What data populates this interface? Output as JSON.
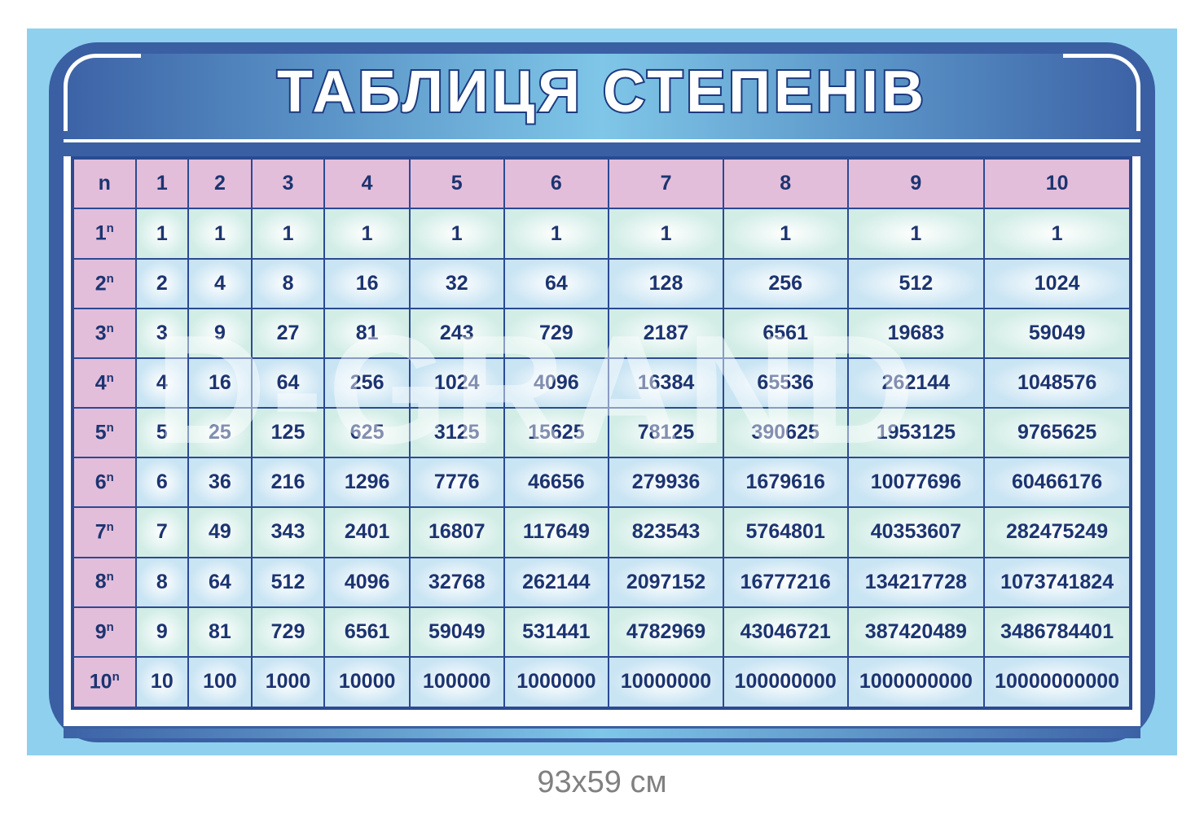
{
  "title": "ТАБЛИЦЯ СТЕПЕНІВ",
  "watermark": "D-GRAND",
  "caption": "93x59 см",
  "colors": {
    "frame": "#3a5fa3",
    "header_cell": "#e3bedb",
    "text": "#1c3470",
    "background": "#8fd0ee"
  },
  "table": {
    "header": [
      "n",
      "1",
      "2",
      "3",
      "4",
      "5",
      "6",
      "7",
      "8",
      "9",
      "10"
    ],
    "rows": [
      {
        "base": "1",
        "sup": "n",
        "values": [
          "1",
          "1",
          "1",
          "1",
          "1",
          "1",
          "1",
          "1",
          "1",
          "1"
        ]
      },
      {
        "base": "2",
        "sup": "n",
        "values": [
          "2",
          "4",
          "8",
          "16",
          "32",
          "64",
          "128",
          "256",
          "512",
          "1024"
        ]
      },
      {
        "base": "3",
        "sup": "n",
        "values": [
          "3",
          "9",
          "27",
          "81",
          "243",
          "729",
          "2187",
          "6561",
          "19683",
          "59049"
        ]
      },
      {
        "base": "4",
        "sup": "n",
        "values": [
          "4",
          "16",
          "64",
          "256",
          "1024",
          "4096",
          "16384",
          "65536",
          "262144",
          "1048576"
        ]
      },
      {
        "base": "5",
        "sup": "n",
        "values": [
          "5",
          "25",
          "125",
          "625",
          "3125",
          "15625",
          "78125",
          "390625",
          "1953125",
          "9765625"
        ]
      },
      {
        "base": "6",
        "sup": "n",
        "values": [
          "6",
          "36",
          "216",
          "1296",
          "7776",
          "46656",
          "279936",
          "1679616",
          "10077696",
          "60466176"
        ]
      },
      {
        "base": "7",
        "sup": "n",
        "values": [
          "7",
          "49",
          "343",
          "2401",
          "16807",
          "117649",
          "823543",
          "5764801",
          "40353607",
          "282475249"
        ]
      },
      {
        "base": "8",
        "sup": "n",
        "values": [
          "8",
          "64",
          "512",
          "4096",
          "32768",
          "262144",
          "2097152",
          "16777216",
          "134217728",
          "1073741824"
        ]
      },
      {
        "base": "9",
        "sup": "n",
        "values": [
          "9",
          "81",
          "729",
          "6561",
          "59049",
          "531441",
          "4782969",
          "43046721",
          "387420489",
          "3486784401"
        ]
      },
      {
        "base": "10",
        "sup": "n",
        "values": [
          "10",
          "100",
          "1000",
          "10000",
          "100000",
          "1000000",
          "10000000",
          "100000000",
          "1000000000",
          "10000000000"
        ]
      }
    ]
  }
}
